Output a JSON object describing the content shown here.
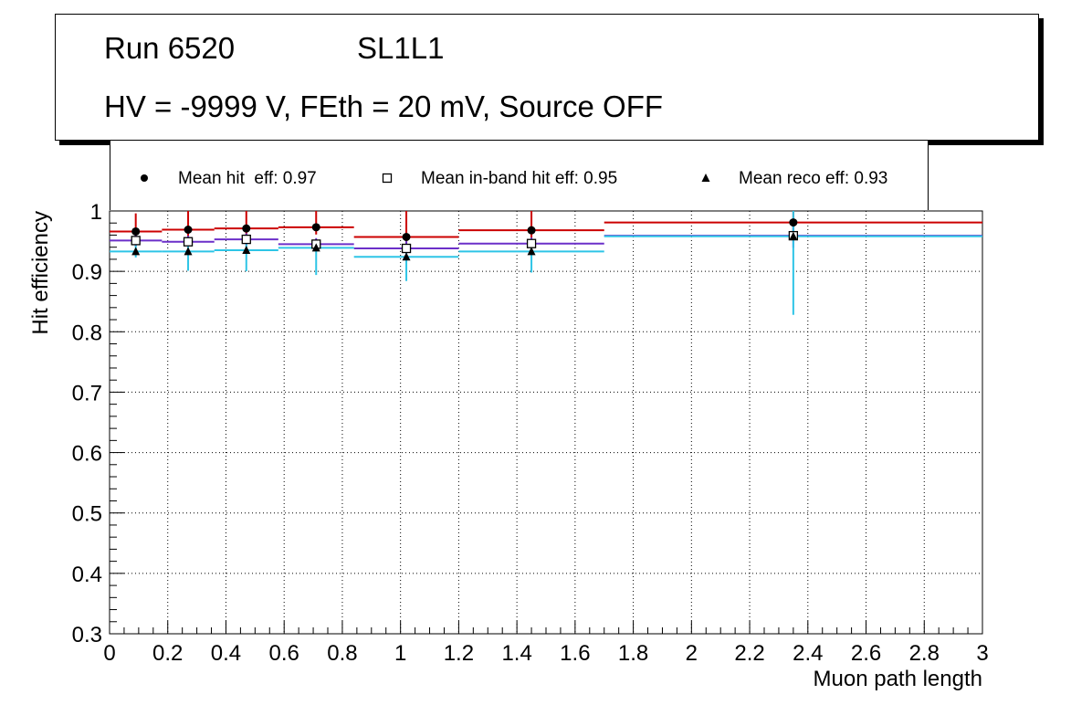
{
  "title": {
    "run": "Run 6520",
    "layer": "SL1L1",
    "conditions": "HV = -9999 V, FEth = 20 mV, Source OFF"
  },
  "legend": {
    "entries": [
      {
        "label": "Mean hit  eff: 0.97",
        "marker": "circle"
      },
      {
        "label": "Mean in-band hit eff: 0.95",
        "marker": "square-open"
      },
      {
        "label": "Mean reco eff: 0.93",
        "marker": "triangle"
      }
    ]
  },
  "chart_data": {
    "type": "scatter",
    "title": "Run 6520    SL1L1  HV = -9999 V, FEth = 20 mV, Source OFF",
    "xlabel": "Muon path length",
    "ylabel": "Hit efficiency",
    "xlim": [
      0,
      3
    ],
    "ylim": [
      0.3,
      1.0
    ],
    "grid": true,
    "x_ticks": [
      "0",
      "0.2",
      "0.4",
      "0.6",
      "0.8",
      "1",
      "1.2",
      "1.4",
      "1.6",
      "1.8",
      "2",
      "2.2",
      "2.4",
      "2.6",
      "2.8",
      "3"
    ],
    "y_ticks": [
      "0.3",
      "0.4",
      "0.5",
      "0.6",
      "0.7",
      "0.8",
      "0.9",
      "1"
    ],
    "bins": [
      {
        "xlow": 0.0,
        "xhigh": 0.18,
        "xcenter": 0.09
      },
      {
        "xlow": 0.18,
        "xhigh": 0.36,
        "xcenter": 0.27
      },
      {
        "xlow": 0.36,
        "xhigh": 0.58,
        "xcenter": 0.47
      },
      {
        "xlow": 0.58,
        "xhigh": 0.84,
        "xcenter": 0.71
      },
      {
        "xlow": 0.84,
        "xhigh": 1.2,
        "xcenter": 1.02
      },
      {
        "xlow": 1.2,
        "xhigh": 1.7,
        "xcenter": 1.45
      },
      {
        "xlow": 1.7,
        "xhigh": 3.0,
        "xcenter": 2.35
      }
    ],
    "series": [
      {
        "name": "Mean hit  eff: 0.97",
        "marker": "circle",
        "line_color": "#cc0000",
        "values": [
          0.966,
          0.969,
          0.971,
          0.973,
          0.957,
          0.968,
          0.981
        ],
        "err_low": [
          0.012,
          0.012,
          0.012,
          0.012,
          0.015,
          0.012,
          0.03
        ],
        "err_high": [
          0.03,
          0.031,
          0.029,
          0.027,
          0.043,
          0.032,
          0.019
        ]
      },
      {
        "name": "Mean in-band hit eff: 0.95",
        "marker": "square-open",
        "line_color": "#6b2fc9",
        "values": [
          0.951,
          0.949,
          0.953,
          0.945,
          0.938,
          0.946,
          0.959
        ],
        "err_low": [
          0.01,
          0.01,
          0.01,
          0.01,
          0.012,
          0.01,
          0.02
        ],
        "err_high": [
          0.01,
          0.01,
          0.01,
          0.01,
          0.012,
          0.01,
          0.02
        ]
      },
      {
        "name": "Mean reco eff: 0.93",
        "marker": "triangle",
        "line_color": "#2ec5e6",
        "values": [
          0.933,
          0.933,
          0.935,
          0.939,
          0.924,
          0.933,
          0.958
        ],
        "err_low": [
          0.01,
          0.032,
          0.035,
          0.045,
          0.04,
          0.035,
          0.13
        ],
        "err_high": [
          0.01,
          0.01,
          0.01,
          0.01,
          0.01,
          0.01,
          0.042
        ]
      }
    ]
  }
}
